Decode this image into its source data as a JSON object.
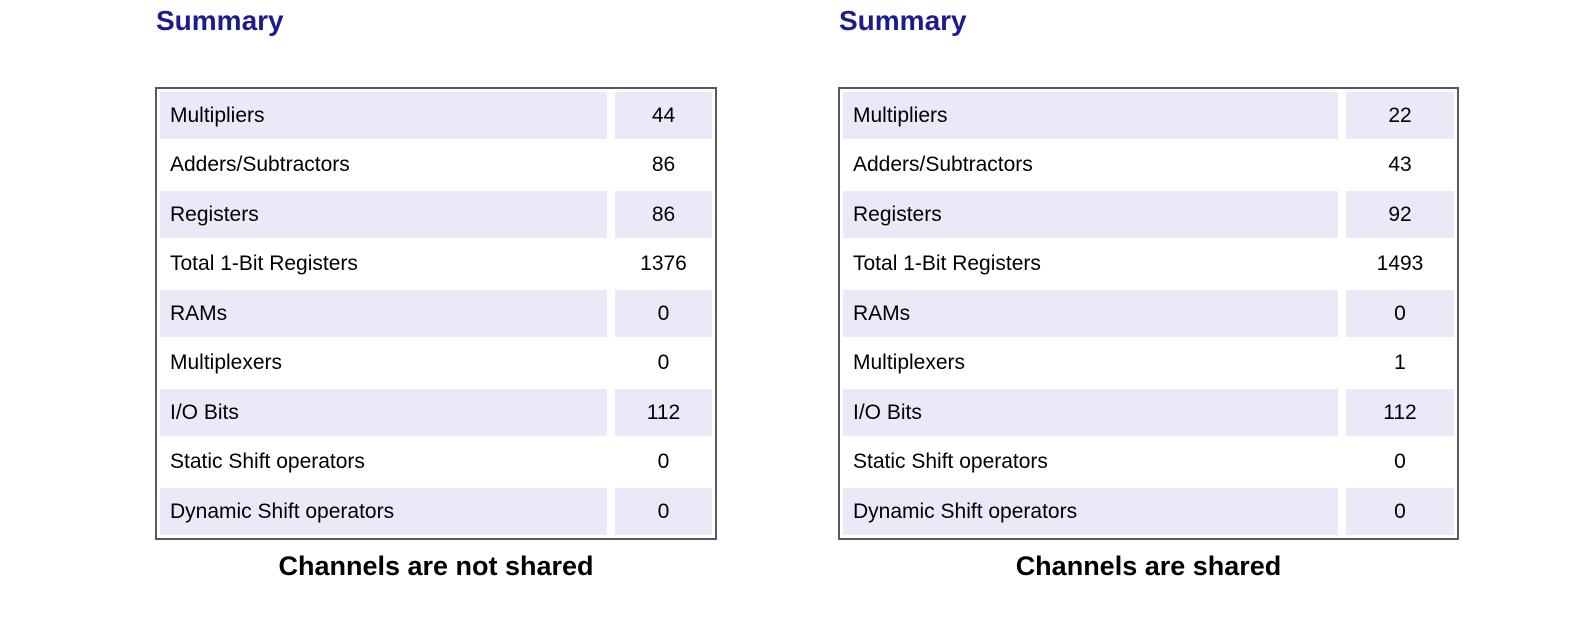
{
  "colors": {
    "page_bg": "#ffffff",
    "heading": "#1b1b8e",
    "row_alt": "#e9e9f8",
    "border": "#5a5a5e",
    "text": "#000000"
  },
  "panels": [
    {
      "heading": "Summary",
      "caption": "Channels are not shared",
      "rows": [
        {
          "label": "Multipliers",
          "value": "44"
        },
        {
          "label": "Adders/Subtractors",
          "value": "86"
        },
        {
          "label": "Registers",
          "value": "86"
        },
        {
          "label": "Total 1-Bit Registers",
          "value": "1376"
        },
        {
          "label": "RAMs",
          "value": "0"
        },
        {
          "label": "Multiplexers",
          "value": "0"
        },
        {
          "label": "I/O Bits",
          "value": "112"
        },
        {
          "label": "Static Shift operators",
          "value": "0"
        },
        {
          "label": "Dynamic Shift operators",
          "value": "0"
        }
      ]
    },
    {
      "heading": "Summary",
      "caption": "Channels are shared",
      "rows": [
        {
          "label": "Multipliers",
          "value": "22"
        },
        {
          "label": "Adders/Subtractors",
          "value": "43"
        },
        {
          "label": "Registers",
          "value": "92"
        },
        {
          "label": "Total 1-Bit Registers",
          "value": "1493"
        },
        {
          "label": "RAMs",
          "value": "0"
        },
        {
          "label": "Multiplexers",
          "value": "1"
        },
        {
          "label": "I/O Bits",
          "value": "112"
        },
        {
          "label": "Static Shift operators",
          "value": "0"
        },
        {
          "label": "Dynamic Shift operators",
          "value": "0"
        }
      ]
    }
  ]
}
